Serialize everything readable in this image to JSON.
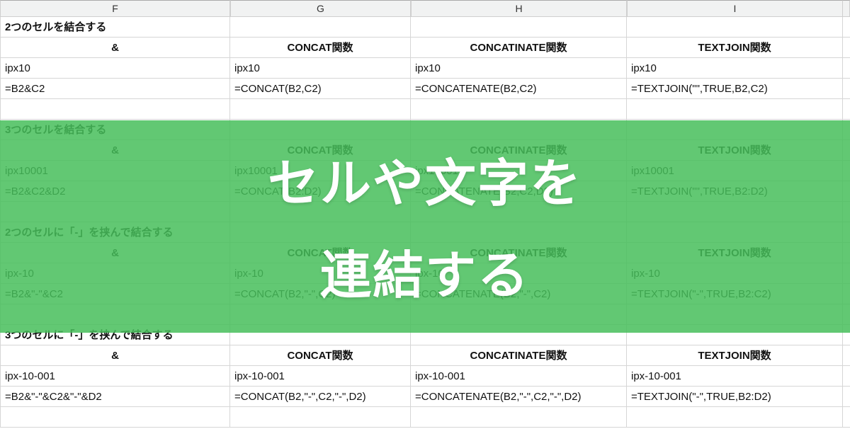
{
  "columns": [
    "F",
    "G",
    "H",
    "I",
    ""
  ],
  "sections": [
    {
      "title": "2つのセルを結合する",
      "headers": [
        "&",
        "CONCAT関数",
        "CONCATINATE関数",
        "TEXTJOIN関数"
      ],
      "values": [
        "ipx10",
        "ipx10",
        "ipx10",
        "ipx10"
      ],
      "formulas": [
        "=B2&C2",
        "=CONCAT(B2,C2)",
        "=CONCATENATE(B2,C2)",
        "=TEXTJOIN(\"\",TRUE,B2,C2)"
      ]
    },
    {
      "title": "3つのセルを結合する",
      "headers": [
        "&",
        "CONCAT関数",
        "CONCATINATE関数",
        "TEXTJOIN関数"
      ],
      "values": [
        "ipx10001",
        "ipx10001",
        "ipx10001",
        "ipx10001"
      ],
      "formulas": [
        "=B2&C2&D2",
        "=CONCAT(B2:D2)",
        "=CONCATENATE(B2,C2,D2)",
        "=TEXTJOIN(\"\",TRUE,B2:D2)"
      ]
    },
    {
      "title": "2つのセルに「-」を挟んで結合する",
      "headers": [
        "&",
        "CONCAT関数",
        "CONCATINATE関数",
        "TEXTJOIN関数"
      ],
      "values": [
        "ipx-10",
        "ipx-10",
        "ipx-10",
        "ipx-10"
      ],
      "formulas": [
        "=B2&\"-\"&C2",
        "=CONCAT(B2,\"-\",C2)",
        "=CONCATENATE(B2,\"-\",C2)",
        "=TEXTJOIN(\"-\",TRUE,B2:C2)"
      ]
    },
    {
      "title": "3つのセルに「-」を挟んで結合する",
      "headers": [
        "&",
        "CONCAT関数",
        "CONCATINATE関数",
        "TEXTJOIN関数"
      ],
      "values": [
        "ipx-10-001",
        "ipx-10-001",
        "ipx-10-001",
        "ipx-10-001"
      ],
      "formulas": [
        "=B2&\"-\"&C2&\"-\"&D2",
        "=CONCAT(B2,\"-\",C2,\"-\",D2)",
        "=CONCATENATE(B2,\"-\",C2,\"-\",D2)",
        "=TEXTJOIN(\"-\",TRUE,B2:D2)"
      ]
    }
  ],
  "overlay": {
    "line1": "セルや文字を",
    "line2": "連結する"
  },
  "colors": {
    "overlay_bg": "rgba(70,190,90,0.85)",
    "overlay_text": "#ffffff"
  }
}
